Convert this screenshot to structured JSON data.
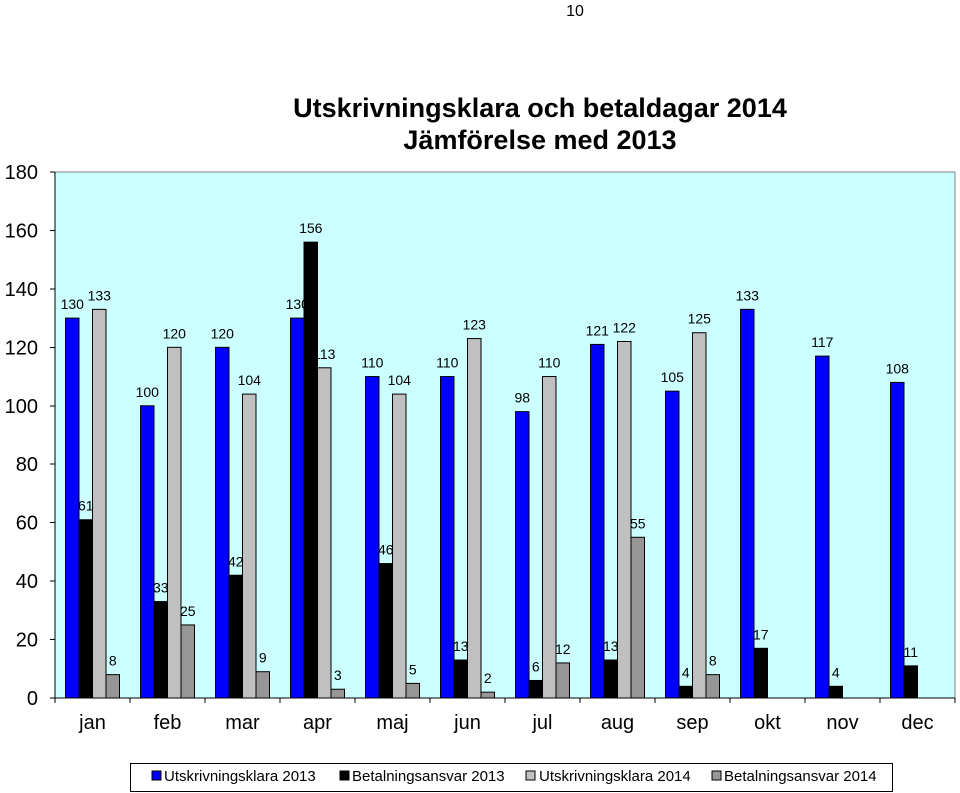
{
  "page_number": "10",
  "chart_data": {
    "type": "bar",
    "title": "Utskrivningsklara och betaldagar 2014",
    "subtitle": "Jämförelse med 2013",
    "xlabel": "",
    "ylabel": "",
    "categories": [
      "jan",
      "feb",
      "mar",
      "apr",
      "maj",
      "jun",
      "jul",
      "aug",
      "sep",
      "okt",
      "nov",
      "dec"
    ],
    "ylim": [
      0,
      180
    ],
    "yticks": [
      0,
      20,
      40,
      60,
      80,
      100,
      120,
      140,
      160,
      180
    ],
    "grid": false,
    "legend_position": "bottom",
    "plot_background": "#CCFFFF",
    "series": [
      {
        "name": "Utskrivningsklara 2013",
        "color": "#0000FF",
        "values": [
          130,
          100,
          120,
          130,
          110,
          110,
          98,
          121,
          105,
          133,
          117,
          108
        ]
      },
      {
        "name": "Betalningsansvar 2013",
        "color": "#000000",
        "values": [
          61,
          33,
          42,
          156,
          46,
          13,
          6,
          13,
          4,
          17,
          4,
          11
        ]
      },
      {
        "name": "Utskrivningsklara 2014",
        "color": "#C0C0C0",
        "values": [
          133,
          120,
          104,
          113,
          104,
          123,
          110,
          122,
          125,
          null,
          null,
          null
        ]
      },
      {
        "name": "Betalningsansvar 2014",
        "color": "#969696",
        "values": [
          8,
          25,
          9,
          3,
          5,
          2,
          12,
          55,
          8,
          null,
          null,
          null
        ]
      }
    ]
  }
}
